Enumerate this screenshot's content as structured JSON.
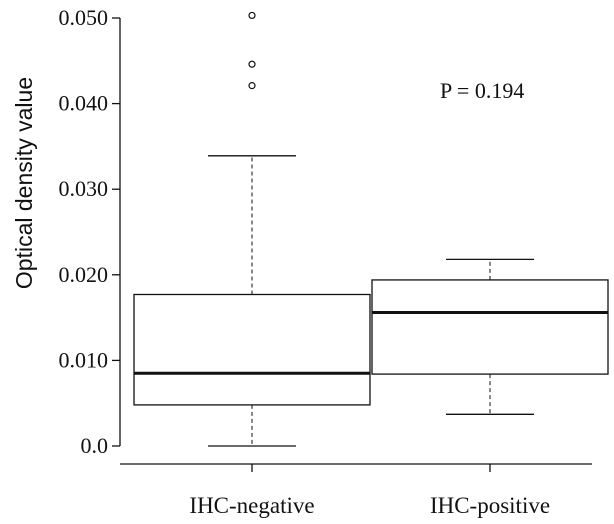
{
  "chart_data": {
    "type": "box",
    "ylabel": "Optical density value",
    "annotation": "P = 0.194",
    "y_ticks": [
      "0.0",
      "0.010",
      "0.020",
      "0.030",
      "0.040",
      "0.050"
    ],
    "y_tick_values": [
      0.0,
      0.01,
      0.02,
      0.03,
      0.04,
      0.05
    ],
    "ylim": [
      0.0,
      0.05
    ],
    "categories": [
      "IHC-negative",
      "IHC-positive"
    ],
    "groups": [
      {
        "name": "IHC-negative",
        "whisker_low": 0.0,
        "q1": 0.0048,
        "median": 0.0085,
        "q3": 0.0177,
        "whisker_high": 0.0339,
        "outliers": [
          0.0421,
          0.0446,
          0.0503
        ]
      },
      {
        "name": "IHC-positive",
        "whisker_low": 0.0037,
        "q1": 0.0084,
        "median": 0.0156,
        "q3": 0.0194,
        "whisker_high": 0.0218,
        "outliers": []
      }
    ]
  }
}
